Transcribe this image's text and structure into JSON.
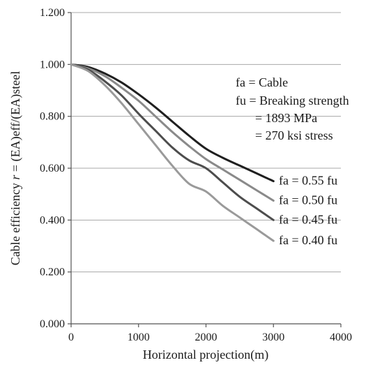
{
  "chart_data": {
    "type": "line",
    "title": "",
    "xlabel": "Horizontal projection(m)",
    "ylabel_parts": [
      "Cable efficiency ",
      "r",
      " = (EA)eff/(EA)steel"
    ],
    "xlim": [
      0,
      4000
    ],
    "ylim": [
      0,
      1.2
    ],
    "x_ticks": [
      0,
      1000,
      2000,
      3000,
      4000
    ],
    "x_tick_labels": [
      "0",
      "1000",
      "2000",
      "3000",
      "4000"
    ],
    "y_ticks": [
      0,
      0.2,
      0.4,
      0.6,
      0.8,
      1.0,
      1.2
    ],
    "y_tick_labels": [
      "0.000",
      "0.200",
      "0.400",
      "0.600",
      "0.800",
      "1.000",
      "1.200"
    ],
    "grid": "horizontal",
    "annotation_lines": [
      "fa = Cable",
      "fu = Breaking strength",
      "= 1893 MPa",
      "= 270 ksi stress"
    ],
    "series": [
      {
        "name": "fa = 0.55 fu",
        "color": "#1f1f1f",
        "x": [
          0,
          250,
          500,
          750,
          1000,
          1250,
          1500,
          1750,
          2000,
          2250,
          2500,
          2750,
          3000
        ],
        "y": [
          1.0,
          0.99,
          0.965,
          0.93,
          0.885,
          0.835,
          0.78,
          0.725,
          0.675,
          0.64,
          0.61,
          0.58,
          0.55
        ]
      },
      {
        "name": "fa = 0.50 fu",
        "color": "#8a8a8a",
        "x": [
          0,
          250,
          500,
          750,
          1000,
          1250,
          1500,
          1750,
          2000,
          2250,
          2500,
          2750,
          3000
        ],
        "y": [
          1.0,
          0.985,
          0.955,
          0.91,
          0.86,
          0.8,
          0.74,
          0.685,
          0.635,
          0.595,
          0.555,
          0.515,
          0.475
        ]
      },
      {
        "name": "fa = 0.45 fu",
        "color": "#4d4d4d",
        "x": [
          0,
          250,
          500,
          750,
          1000,
          1250,
          1500,
          1750,
          2000,
          2250,
          2500,
          2750,
          3000
        ],
        "y": [
          1.0,
          0.98,
          0.935,
          0.88,
          0.81,
          0.745,
          0.68,
          0.63,
          0.6,
          0.545,
          0.49,
          0.445,
          0.4
        ]
      },
      {
        "name": "fa = 0.40 fu",
        "color": "#9a9a9a",
        "x": [
          0,
          250,
          500,
          750,
          1000,
          1250,
          1500,
          1750,
          2000,
          2250,
          2500,
          2750,
          3000
        ],
        "y": [
          1.0,
          0.975,
          0.92,
          0.85,
          0.77,
          0.69,
          0.61,
          0.54,
          0.51,
          0.455,
          0.41,
          0.365,
          0.32
        ]
      }
    ]
  }
}
